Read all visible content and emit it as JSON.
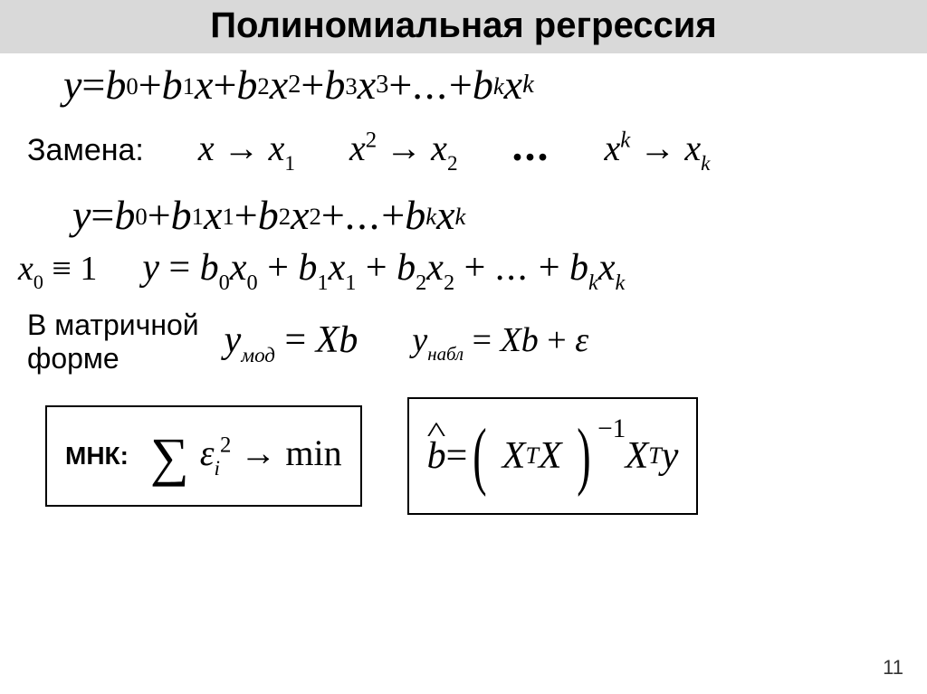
{
  "title": "Полиномиальная регрессия",
  "eq1": {
    "y": "y",
    "eq": " = ",
    "b0": "b",
    "b0sub": "0",
    "plus1": " + ",
    "b1": "b",
    "b1sub": "1",
    "x1": "x",
    "plus2": " + ",
    "b2": "b",
    "b2sub": "2",
    "x2": "x",
    "x2exp": "2",
    "plus3": " + ",
    "b3": "b",
    "b3sub": "3",
    "x3": "x",
    "x3exp": "3",
    "plus4": " + ",
    "dots": "...",
    "plus5": " + ",
    "bk": "b",
    "bksub": "k",
    "xk": "x",
    "xkexp": "k"
  },
  "substitution": {
    "label": "Замена:",
    "s1_l": "x",
    "arrow": " → ",
    "s1_r": "x",
    "s1_rsub": "1",
    "s2_l": "x",
    "s2_lexp": "2",
    "s2_r": "x",
    "s2_rsub": "2",
    "dots": "...",
    "sk_l": "x",
    "sk_lexp": "k",
    "sk_r": "x",
    "sk_rsub": "k"
  },
  "eq3": {
    "y": "y",
    "eq": " = ",
    "b0": "b",
    "b0sub": "0",
    "plus1": " + ",
    "b1": "b",
    "b1sub": "1",
    "x1": "x",
    "x1sub": "1",
    "plus2": " + ",
    "b2": "b",
    "b2sub": "2",
    "x2": "x",
    "x2sub": "2",
    "plus3": " + ",
    "dots": "...",
    "plus4": " + ",
    "bk": "b",
    "bksub": "k",
    "xk": "x",
    "xksub": "k"
  },
  "row4": {
    "x0": "x",
    "x0sub": "0",
    "ident": " ≡ ",
    "one": "1",
    "y": "y",
    "eq": " = ",
    "b0": "b",
    "b0sub": "0",
    "xb0": "x",
    "xb0sub": "0",
    "plus1": " + ",
    "b1": "b",
    "b1sub": "1",
    "xb1": "x",
    "xb1sub": "1",
    "plus2": " + ",
    "b2": "b",
    "b2sub": "2",
    "xb2": "x",
    "xb2sub": "2",
    "plus3": " + ",
    "dots": "...",
    "plus4": " + ",
    "bk": "b",
    "bksub": "k",
    "xbk": "x",
    "xbksub": "k"
  },
  "matrix": {
    "label_l1": "В матричной",
    "label_l2": "форме",
    "ymod_y": "y",
    "ymod_sub": "мод",
    "eq1": " = ",
    "X1": "X",
    "b1": "b",
    "yobs_y": "y",
    "yobs_sub": "набл",
    "eq2": " = ",
    "X2": "X",
    "b2": "b",
    "plus": " + ",
    "eps": "ε"
  },
  "mnk": {
    "label": "МНК:",
    "sigma": "∑",
    "eps": "ε",
    "eps_sub": "i",
    "eps_exp": "2",
    "arrow": " → ",
    "min": "min"
  },
  "bhat": {
    "b": "b",
    "eq": " = ",
    "lparen": "(",
    "X1": "X",
    "T1": "T",
    "X2": "X",
    "rparen": ")",
    "exp": "−1",
    "X3": "X",
    "T2": "T",
    "y": "y"
  },
  "slide_number": "11",
  "colors": {
    "title_bg": "#d9d9d9",
    "text": "#000000",
    "bg": "#ffffff"
  }
}
